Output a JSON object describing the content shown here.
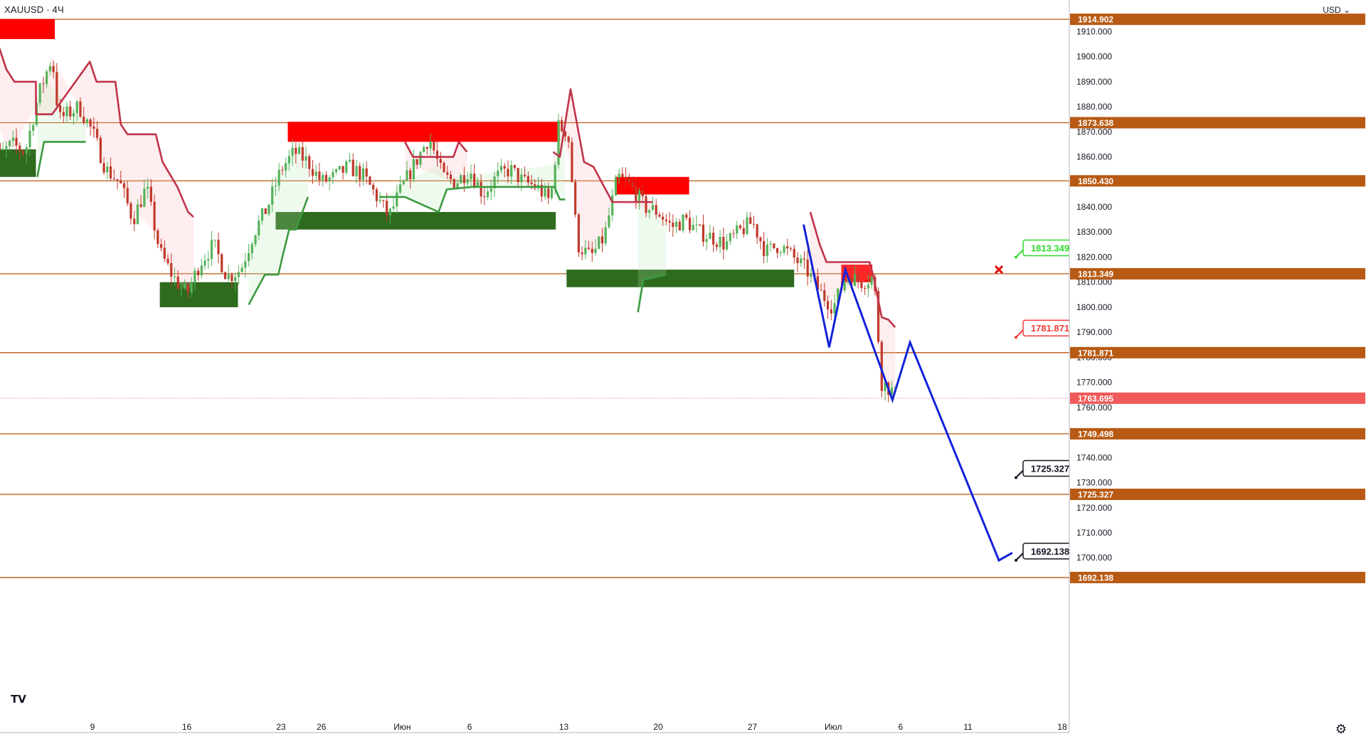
{
  "header": {
    "symbol": "XAUUSD",
    "separator": "·",
    "timeframe": "4Ч"
  },
  "axis": {
    "currency": "USD"
  },
  "icons": {
    "tradingview_logo": "tv-logo-icon",
    "settings": "gear-icon",
    "dropdown": "chevron-down-icon",
    "close_marker": "x-icon"
  },
  "colors": {
    "level_line": "#b85a13",
    "level_label_bg": "#b85a13",
    "supply_zone": "#ff0000",
    "demand_zone": "#2e6b1e",
    "up_candle": "#56b25a",
    "down_candle": "#c0392b",
    "trail_down": "#c0334a",
    "trail_up": "#3c9a40",
    "forecast": "#1322d8",
    "price_tag": "#f05a5a",
    "callout_green": "#2ddc2d",
    "callout_red": "#ef3b3b",
    "callout_black": "#131722"
  },
  "chart_data": {
    "type": "candlestick",
    "symbol": "XAUUSD",
    "timeframe": "4Ч",
    "ylim": [
      1690,
      1918
    ],
    "y_ticks": [
      1700,
      1710,
      1720,
      1730,
      1740,
      1750,
      1760,
      1770,
      1780,
      1790,
      1800,
      1810,
      1820,
      1830,
      1840,
      1850,
      1860,
      1870,
      1880,
      1890,
      1900,
      1910
    ],
    "y_tick_labels": [
      "1700.000",
      "1710.000",
      "1720.000",
      "1730.000",
      "1740.000",
      "1750.000",
      "1760.000",
      "1770.000",
      "1780.000",
      "1790.000",
      "1800.000",
      "1810.000",
      "1820.000",
      "1830.000",
      "1840.000",
      "1850.000",
      "1860.000",
      "1870.000",
      "1880.000",
      "1890.000",
      "1900.000",
      "1910.000"
    ],
    "x_tick_labels": [
      "9",
      "16",
      "23",
      "26",
      "Июн",
      "6",
      "13",
      "20",
      "27",
      "Июл",
      "6",
      "11",
      "18"
    ],
    "x_ticks_day": [
      8,
      15,
      22,
      25,
      31,
      36,
      43,
      50,
      57,
      63,
      68,
      73,
      80
    ],
    "horizontal_levels": [
      1914.902,
      1873.638,
      1850.43,
      1813.349,
      1781.871,
      1749.498,
      1725.327,
      1692.138
    ],
    "level_labels": [
      "1914.902",
      "1873.638",
      "1850.430",
      "1813.349",
      "1781.871",
      "1749.498",
      "1725.327",
      "1692.138"
    ],
    "last_price": 1763.695,
    "last_price_label": "1763.695",
    "supply_zones": [
      {
        "day_from": 0,
        "day_to": 5.2,
        "low": 1907,
        "high": 1915
      },
      {
        "day_from": 22.5,
        "day_to": 42.7,
        "low": 1866,
        "high": 1874
      },
      {
        "day_from": 46.8,
        "day_to": 52.3,
        "low": 1845,
        "high": 1852
      },
      {
        "day_from": 63.6,
        "day_to": 65.9,
        "low": 1810,
        "high": 1817
      }
    ],
    "demand_zones": [
      {
        "day_from": 0.5,
        "day_to": 3.8,
        "low": 1852,
        "high": 1863
      },
      {
        "day_from": 13,
        "day_to": 18.8,
        "low": 1800,
        "high": 1810
      },
      {
        "day_from": 21.6,
        "day_to": 42.4,
        "low": 1831,
        "high": 1838
      },
      {
        "day_from": 43.2,
        "day_to": 60.1,
        "low": 1808,
        "high": 1815
      }
    ],
    "trail_down": [
      [
        0.2,
        1918
      ],
      [
        1.6,
        1895
      ],
      [
        2.2,
        1890
      ],
      [
        3.8,
        1890
      ],
      [
        3.8,
        1877
      ],
      [
        5,
        1877
      ],
      [
        7.8,
        1898
      ],
      [
        8.3,
        1890
      ],
      [
        9.7,
        1890
      ],
      [
        10.1,
        1873
      ],
      [
        10.6,
        1869
      ],
      [
        12.7,
        1869
      ],
      [
        13.2,
        1858
      ],
      [
        14.3,
        1848
      ],
      [
        15.1,
        1838
      ],
      [
        15.5,
        1836
      ],
      [
        19.7,
        1836
      ],
      [
        31.2,
        1866
      ],
      [
        31.8,
        1860
      ],
      [
        34.8,
        1860
      ],
      [
        35.2,
        1866
      ],
      [
        35.8,
        1862
      ],
      [
        42.2,
        1862
      ],
      [
        42.7,
        1860
      ],
      [
        43.5,
        1887
      ],
      [
        44.5,
        1858
      ],
      [
        45.2,
        1856
      ],
      [
        46,
        1848
      ],
      [
        46.6,
        1842
      ],
      [
        49.6,
        1842
      ],
      [
        61.3,
        1838
      ],
      [
        62,
        1825
      ],
      [
        62.5,
        1818
      ],
      [
        65.7,
        1818
      ],
      [
        66,
        1812
      ],
      [
        66.6,
        1796
      ],
      [
        67.1,
        1795
      ],
      [
        67.6,
        1792
      ]
    ],
    "trail_up": [
      [
        3.9,
        1852
      ],
      [
        4.4,
        1866
      ],
      [
        7.5,
        1866
      ],
      [
        19.6,
        1801
      ],
      [
        20.3,
        1808
      ],
      [
        20.8,
        1813
      ],
      [
        21.8,
        1813
      ],
      [
        22.1,
        1820
      ],
      [
        22.6,
        1831
      ],
      [
        23.1,
        1831
      ],
      [
        24,
        1844
      ],
      [
        29.3,
        1844
      ],
      [
        31.2,
        1844
      ],
      [
        33.7,
        1838
      ],
      [
        34.3,
        1847
      ],
      [
        36.2,
        1848
      ],
      [
        38.8,
        1848
      ],
      [
        42.3,
        1848
      ],
      [
        42.7,
        1843
      ],
      [
        43.1,
        1843
      ],
      [
        48.5,
        1798
      ],
      [
        48.9,
        1811
      ],
      [
        50.6,
        1813
      ],
      [
        55,
        1815
      ],
      [
        60.9,
        1816
      ]
    ],
    "forecast_path": [
      [
        60.8,
        1833
      ],
      [
        62.7,
        1784
      ],
      [
        63.9,
        1815
      ],
      [
        67.4,
        1763
      ],
      [
        68.7,
        1786
      ],
      [
        75.3,
        1699
      ],
      [
        76.3,
        1702
      ]
    ],
    "callouts": [
      {
        "label": "1813.349",
        "price": 1820,
        "style": "green"
      },
      {
        "label": "1781.871",
        "price": 1788,
        "style": "red"
      },
      {
        "label": "1725.327",
        "price": 1732,
        "style": "black"
      },
      {
        "label": "1692.138",
        "price": 1699,
        "style": "black"
      }
    ],
    "close_marker": {
      "day": 75.3,
      "price": 1815
    }
  }
}
